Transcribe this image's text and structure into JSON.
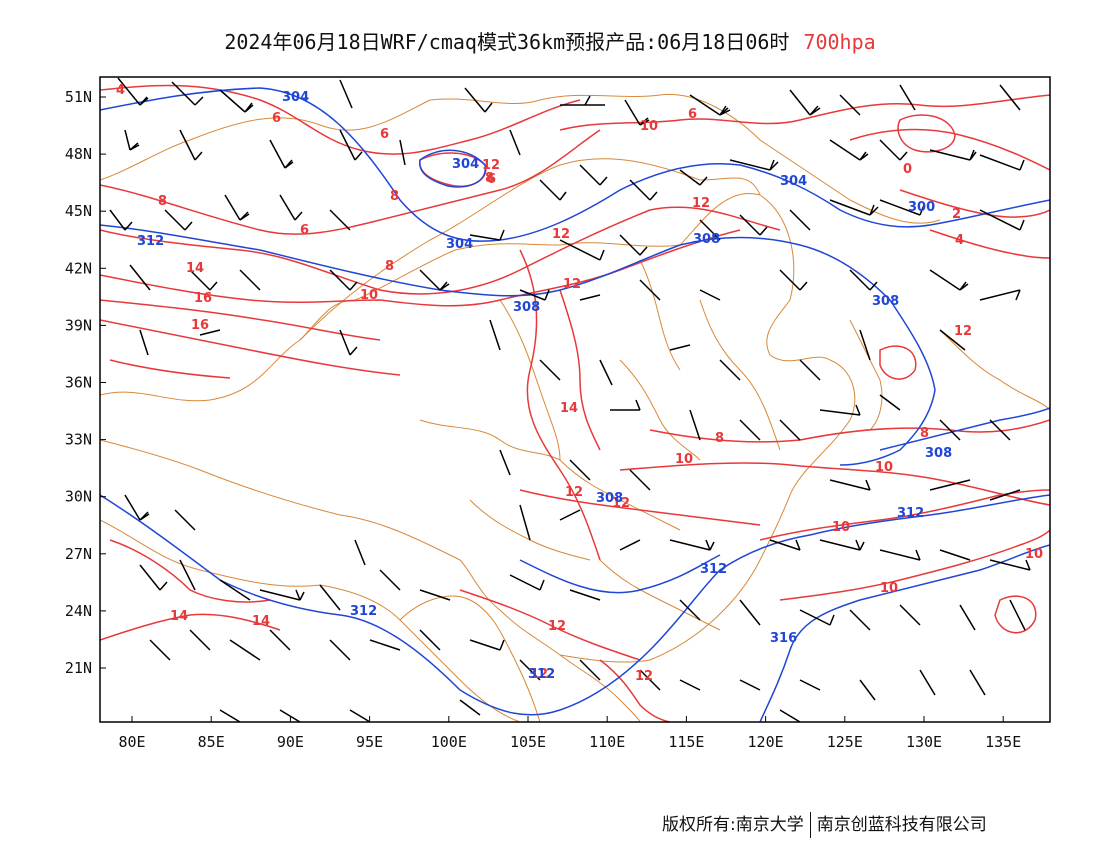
{
  "title": {
    "main": "2024年06月18日WRF/cmaq模式36km预报产品:06月18日06时",
    "level": "700hpa"
  },
  "colors": {
    "temperature_contour": "#e8383a",
    "height_contour": "#1f46d6",
    "boundary": "#d8883a",
    "wind_barb": "#000000",
    "frame": "#000000"
  },
  "axes": {
    "lon_labels": [
      "80E",
      "85E",
      "90E",
      "95E",
      "100E",
      "105E",
      "110E",
      "115E",
      "120E",
      "125E",
      "130E",
      "135E"
    ],
    "lat_labels": [
      "51N",
      "48N",
      "45N",
      "42N",
      "39N",
      "36N",
      "33N",
      "30N",
      "27N",
      "24N",
      "21N"
    ]
  },
  "contour_labels": {
    "temperature": [
      "4",
      "6",
      "6",
      "8",
      "8",
      "6",
      "10",
      "6",
      "8",
      "8",
      "10",
      "12",
      "12",
      "14",
      "12",
      "14",
      "16",
      "16",
      "14",
      "14",
      "12",
      "12",
      "12",
      "10",
      "8",
      "8",
      "10",
      "10",
      "10",
      "10",
      "12",
      "12",
      "12",
      "4",
      "2",
      "0",
      "6",
      "12"
    ],
    "height": [
      "304",
      "304",
      "304",
      "308",
      "308",
      "308",
      "308",
      "308",
      "312",
      "312",
      "312",
      "312",
      "312",
      "316",
      "300",
      "304"
    ]
  },
  "footer": {
    "copyright": "版权所有:南京大学",
    "company": "南京创蓝科技有限公司"
  }
}
